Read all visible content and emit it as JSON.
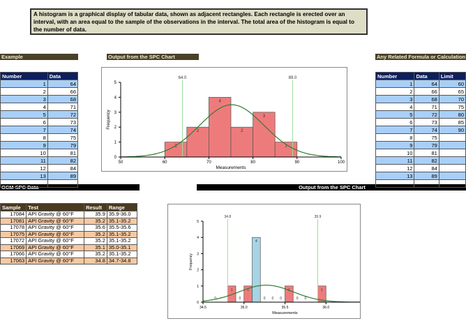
{
  "description": "A histogram is a graphical display of tabular data, shown as adjacent rectangles. Each rectangle is erected over an interval, with an area equal to the sample of the observations in the interval. The total area of the histogram is equal to the number of data.",
  "sections": {
    "example": "Example",
    "output1": "Output from the SPC Chart",
    "formula": "Any Related Formula or Calculation",
    "ocm": "OCM SPC Data",
    "output2": "Output from the SPC Chart"
  },
  "example_table": {
    "headers": [
      "Number",
      "Data"
    ],
    "rows": [
      [
        "1",
        "64"
      ],
      [
        "2",
        "66"
      ],
      [
        "3",
        "68"
      ],
      [
        "4",
        "71"
      ],
      [
        "5",
        "72"
      ],
      [
        "6",
        "73"
      ],
      [
        "7",
        "74"
      ],
      [
        "8",
        "75"
      ],
      [
        "9",
        "79"
      ],
      [
        "10",
        "81"
      ],
      [
        "11",
        "82"
      ],
      [
        "12",
        "84"
      ],
      [
        "13",
        "89"
      ],
      [
        "",
        ""
      ]
    ]
  },
  "formula_table": {
    "headers": [
      "Number",
      "Data",
      "Limit"
    ],
    "rows": [
      [
        "1",
        "64",
        "60"
      ],
      [
        "2",
        "66",
        "65"
      ],
      [
        "3",
        "68",
        "70"
      ],
      [
        "4",
        "71",
        "75"
      ],
      [
        "5",
        "72",
        "80"
      ],
      [
        "6",
        "73",
        "85"
      ],
      [
        "7",
        "74",
        "90"
      ],
      [
        "8",
        "75",
        ""
      ],
      [
        "9",
        "79",
        ""
      ],
      [
        "10",
        "81",
        ""
      ],
      [
        "11",
        "82",
        ""
      ],
      [
        "12",
        "84",
        ""
      ],
      [
        "13",
        "89",
        ""
      ],
      [
        "",
        "",
        ""
      ]
    ]
  },
  "ocm_table": {
    "headers": [
      "Sample",
      "Test",
      "Result",
      "Range"
    ],
    "rows": [
      [
        "17084",
        "API Gravity @ 60°F",
        "35.9",
        "35.9-36.0"
      ],
      [
        "17081",
        "API Gravity @ 60°F",
        "35.2",
        "35.1-35.2"
      ],
      [
        "17078",
        "API Gravity @ 60°F",
        "35.6",
        "35.5-35.6"
      ],
      [
        "17075",
        "API Gravity @ 60°F",
        "35.2",
        "35.1-35.2"
      ],
      [
        "17072",
        "API Gravity @ 60°F",
        "35.2",
        "35.1-35.2"
      ],
      [
        "17069",
        "API Gravity @ 60°F",
        "35.1",
        "35.0-35.1"
      ],
      [
        "17066",
        "API Gravity @ 60°F",
        "35.2",
        "35.1-35.2"
      ],
      [
        "17063",
        "API Gravity @ 60°F",
        "34.8",
        "34.7-34.8"
      ]
    ]
  },
  "chart_data": [
    {
      "type": "bar",
      "title": "",
      "xlabel": "Measurements",
      "ylabel": "Frequency",
      "xlim": [
        50,
        100
      ],
      "ylim": [
        0,
        5
      ],
      "xticks": [
        "50",
        "60",
        "70",
        "80",
        "90",
        "100"
      ],
      "yticks": [
        "0",
        "1",
        "2",
        "3",
        "4",
        "5"
      ],
      "bins": [
        {
          "from": 60,
          "to": 65,
          "count": 1
        },
        {
          "from": 65,
          "to": 70,
          "count": 2
        },
        {
          "from": 70,
          "to": 75,
          "count": 4
        },
        {
          "from": 75,
          "to": 80,
          "count": 2
        },
        {
          "from": 80,
          "to": 85,
          "count": 3
        },
        {
          "from": 85,
          "to": 90,
          "count": 1
        }
      ],
      "limits": [
        {
          "value": 64,
          "label": "64.0"
        },
        {
          "value": 89,
          "label": "89.0"
        }
      ],
      "normal": {
        "mean": 75.2,
        "sd": 7.3,
        "peak": 3.5
      },
      "bar_color": "#ee7b7b"
    },
    {
      "type": "bar",
      "title": "",
      "xlabel": "Measurements",
      "ylabel": "Frequency",
      "xlim": [
        34.5,
        36.5
      ],
      "ylim": [
        0,
        5
      ],
      "xticks": [
        "34.5",
        "35.0",
        "35.5",
        "36.0",
        "36.5"
      ],
      "yticks": [
        "0",
        "1",
        "2",
        "3",
        "4",
        "5"
      ],
      "bins": [
        {
          "from": 34.6,
          "to": 34.7,
          "count": 0
        },
        {
          "from": 34.8,
          "to": 34.9,
          "count": 1
        },
        {
          "from": 34.9,
          "to": 35.0,
          "count": 0
        },
        {
          "from": 35.0,
          "to": 35.1,
          "count": 1
        },
        {
          "from": 35.1,
          "to": 35.2,
          "count": 4,
          "highlight": true
        },
        {
          "from": 35.2,
          "to": 35.3,
          "count": 0
        },
        {
          "from": 35.3,
          "to": 35.4,
          "count": 0
        },
        {
          "from": 35.4,
          "to": 35.5,
          "count": 0
        },
        {
          "from": 35.5,
          "to": 35.6,
          "count": 1
        },
        {
          "from": 35.6,
          "to": 35.7,
          "count": 0
        },
        {
          "from": 35.7,
          "to": 35.8,
          "count": 0
        },
        {
          "from": 35.9,
          "to": 36.0,
          "count": 1
        }
      ],
      "limits": [
        {
          "value": 34.8,
          "label": "34.8"
        },
        {
          "value": 35.9,
          "label": "35.9"
        }
      ],
      "normal": {
        "mean": 35.27,
        "sd": 0.33,
        "peak": 1.05
      },
      "bar_color": "#ee7b7b",
      "highlight_color": "#a6d4e4"
    }
  ]
}
